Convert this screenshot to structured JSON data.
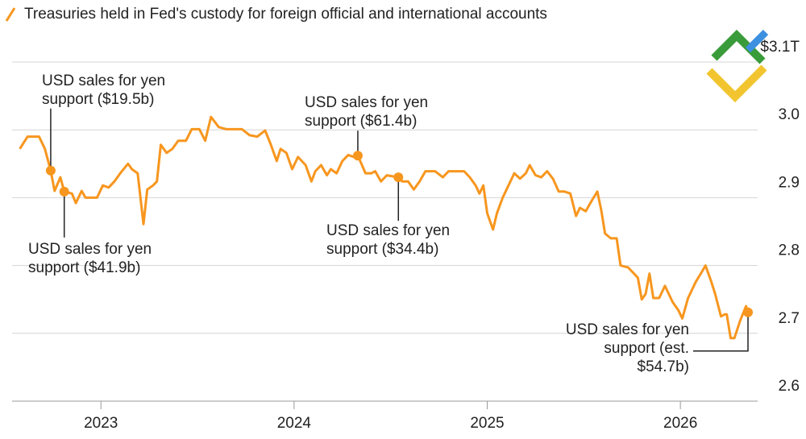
{
  "chart_data": {
    "type": "line",
    "title": "Treasuries held in Fed's custody for foreign official and international accounts",
    "xlim": [
      2022.54,
      2026.4
    ],
    "xticks": [
      2023,
      2024,
      2025,
      2026
    ],
    "ylim": [
      2.6,
      3.1
    ],
    "yticks": [
      2.6,
      2.7,
      2.8,
      2.9,
      {
        "value": 3.0,
        "label": "3.0"
      },
      {
        "value": 3.1,
        "label": "$3.1T"
      }
    ],
    "grid": true,
    "series": [
      {
        "name": "Treasuries held in Fed's custody for foreign official and international accounts",
        "color": "#f7961e",
        "x": [
          2022.58,
          2022.62,
          2022.68,
          2022.71,
          2022.74,
          2022.76,
          2022.79,
          2022.81,
          2022.85,
          2022.87,
          2022.9,
          2022.92,
          2022.95,
          2022.98,
          2023.01,
          2023.04,
          2023.07,
          2023.1,
          2023.14,
          2023.16,
          2023.19,
          2023.22,
          2023.24,
          2023.27,
          2023.29,
          2023.31,
          2023.34,
          2023.37,
          2023.4,
          2023.44,
          2023.47,
          2023.51,
          2023.54,
          2023.57,
          2023.61,
          2023.65,
          2023.73,
          2023.77,
          2023.81,
          2023.85,
          2023.88,
          2023.91,
          2023.93,
          2023.96,
          2023.99,
          2024.02,
          2024.06,
          2024.09,
          2024.11,
          2024.14,
          2024.17,
          2024.19,
          2024.22,
          2024.25,
          2024.28,
          2024.31,
          2024.33,
          2024.37,
          2024.4,
          2024.42,
          2024.45,
          2024.48,
          2024.54,
          2024.56,
          2024.59,
          2024.62,
          2024.65,
          2024.68,
          2024.73,
          2024.77,
          2024.8,
          2024.84,
          2024.88,
          2024.91,
          2024.94,
          2024.96,
          2024.98,
          2025.0,
          2025.03,
          2025.05,
          2025.08,
          2025.11,
          2025.14,
          2025.17,
          2025.2,
          2025.22,
          2025.25,
          2025.28,
          2025.31,
          2025.34,
          2025.37,
          2025.4,
          2025.43,
          2025.46,
          2025.48,
          2025.51,
          2025.54,
          2025.57,
          2025.59,
          2025.61,
          2025.64,
          2025.67,
          2025.69,
          2025.73,
          2025.76,
          2025.78,
          2025.8,
          2025.82,
          2025.84,
          2025.86,
          2025.89,
          2025.92,
          2025.96,
          2025.99,
          2026.01,
          2026.04,
          2026.06,
          2026.08,
          2026.11,
          2026.13,
          2026.16,
          2026.18,
          2026.21,
          2026.23,
          2026.24,
          2026.26,
          2026.28,
          2026.31,
          2026.34,
          2026.35
        ],
        "values": [
          2.972,
          2.99,
          2.99,
          2.972,
          2.94,
          2.91,
          2.93,
          2.909,
          2.906,
          2.892,
          2.91,
          2.9,
          2.9,
          2.9,
          2.918,
          2.915,
          2.924,
          2.936,
          2.95,
          2.942,
          2.936,
          2.861,
          2.912,
          2.918,
          2.924,
          2.978,
          2.966,
          2.972,
          2.984,
          2.984,
          3.001,
          3.001,
          2.984,
          3.019,
          3.004,
          3.001,
          3.001,
          2.992,
          2.99,
          2.999,
          2.978,
          2.954,
          2.972,
          2.966,
          2.942,
          2.96,
          2.948,
          2.924,
          2.939,
          2.948,
          2.933,
          2.942,
          2.936,
          2.954,
          2.963,
          2.96,
          2.962,
          2.936,
          2.936,
          2.939,
          2.924,
          2.933,
          2.93,
          2.924,
          2.924,
          2.912,
          2.924,
          2.939,
          2.939,
          2.93,
          2.939,
          2.939,
          2.939,
          2.93,
          2.918,
          2.906,
          2.918,
          2.877,
          2.853,
          2.877,
          2.9,
          2.918,
          2.936,
          2.928,
          2.936,
          2.948,
          2.933,
          2.93,
          2.939,
          2.928,
          2.909,
          2.909,
          2.906,
          2.873,
          2.885,
          2.88,
          2.895,
          2.909,
          2.882,
          2.847,
          2.84,
          2.84,
          2.8,
          2.797,
          2.788,
          2.782,
          2.75,
          2.758,
          2.788,
          2.752,
          2.752,
          2.77,
          2.746,
          2.734,
          2.722,
          2.752,
          2.764,
          2.776,
          2.79,
          2.8,
          2.776,
          2.758,
          2.725,
          2.728,
          2.728,
          2.693,
          2.693,
          2.719,
          2.74,
          2.731
        ]
      }
    ],
    "annotations": [
      {
        "x": 2022.74,
        "y": 2.94,
        "lines": [
          "USD sales for yen",
          "support ($19.5b)"
        ]
      },
      {
        "x": 2022.81,
        "y": 2.909,
        "lines": [
          "USD sales for yen",
          "support ($41.9b)"
        ]
      },
      {
        "x": 2024.33,
        "y": 2.962,
        "lines": [
          "USD sales for yen",
          "support ($61.4b)"
        ]
      },
      {
        "x": 2024.54,
        "y": 2.93,
        "lines": [
          "USD sales for yen",
          "support ($34.4b)"
        ]
      },
      {
        "x": 2026.35,
        "y": 2.731,
        "lines": [
          "USD sales for yen",
          "support (est.",
          "$54.7b)"
        ]
      }
    ]
  }
}
